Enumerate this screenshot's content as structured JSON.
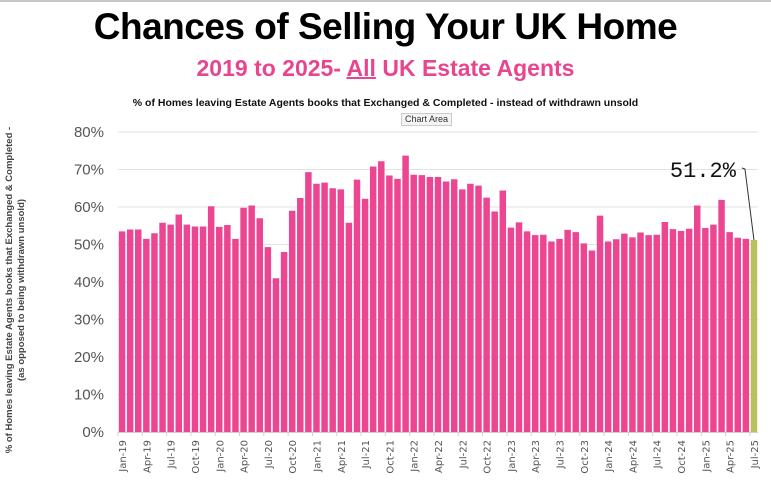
{
  "header": {
    "title": "Chances of Selling Your UK Home",
    "subtitle_pre": "2019 to 2025- ",
    "subtitle_emph": "All",
    "subtitle_post": " UK Estate Agents",
    "tooltip": "Chart Area"
  },
  "chart_data": {
    "type": "bar",
    "title": "% of Homes leaving Estate Agents books that Exchanged & Completed - instead of withdrawn unsold",
    "ylabel": "% of Homes leaving Estate Agents books that Exchanged & Completed - (as opposed to being withdrawn unsold)",
    "xlabel": "",
    "ylim": [
      0,
      80
    ],
    "yticks": [
      "0%",
      "10%",
      "20%",
      "30%",
      "40%",
      "50%",
      "60%",
      "70%",
      "80%"
    ],
    "grid": true,
    "colors": {
      "bar": "#ec4592",
      "highlight": "#b5c35a"
    },
    "categories": [
      "Jan-19",
      "Feb-19",
      "Mar-19",
      "Apr-19",
      "May-19",
      "Jun-19",
      "Jul-19",
      "Aug-19",
      "Sep-19",
      "Oct-19",
      "Nov-19",
      "Dec-19",
      "Jan-20",
      "Feb-20",
      "Mar-20",
      "Apr-20",
      "May-20",
      "Jun-20",
      "Jul-20",
      "Aug-20",
      "Sep-20",
      "Oct-20",
      "Nov-20",
      "Dec-20",
      "Jan-21",
      "Feb-21",
      "Mar-21",
      "Apr-21",
      "May-21",
      "Jun-21",
      "Jul-21",
      "Aug-21",
      "Sep-21",
      "Oct-21",
      "Nov-21",
      "Dec-21",
      "Jan-22",
      "Feb-22",
      "Mar-22",
      "Apr-22",
      "May-22",
      "Jun-22",
      "Jul-22",
      "Aug-22",
      "Sep-22",
      "Oct-22",
      "Nov-22",
      "Dec-22",
      "Jan-23",
      "Feb-23",
      "Mar-23",
      "Apr-23",
      "May-23",
      "Jun-23",
      "Jul-23",
      "Aug-23",
      "Sep-23",
      "Oct-23",
      "Nov-23",
      "Dec-23",
      "Jan-24",
      "Feb-24",
      "Mar-24",
      "Apr-24",
      "May-24",
      "Jun-24",
      "Jul-24",
      "Aug-24",
      "Sep-24",
      "Oct-24",
      "Nov-24",
      "Dec-24",
      "Jan-25",
      "Feb-25",
      "Mar-25",
      "Apr-25",
      "May-25",
      "Jun-25",
      "Jul-25"
    ],
    "xtick_labels": [
      "Jan-19",
      "Apr-19",
      "Jul-19",
      "Oct-19",
      "Jan-20",
      "Apr-20",
      "Jul-20",
      "Oct-20",
      "Jan-21",
      "Apr-21",
      "Jul-21",
      "Oct-21",
      "Jan-22",
      "Apr-22",
      "Jul-22",
      "Oct-22",
      "Jan-23",
      "Apr-23",
      "Jul-23",
      "Oct-23",
      "Jan-24",
      "Apr-24",
      "Jul-24",
      "Oct-24",
      "Jan-25",
      "Apr-25",
      "Jul-25"
    ],
    "values": [
      53.5,
      54,
      54,
      51.5,
      53,
      55.8,
      55.3,
      58,
      55.3,
      54.8,
      54.8,
      60.2,
      54.7,
      55.2,
      51.5,
      59.8,
      60.4,
      57,
      49.3,
      41,
      48,
      59,
      62.4,
      69.3,
      66.2,
      66.5,
      65,
      64.7,
      55.8,
      67.3,
      62.2,
      70.8,
      72.2,
      68.4,
      67.5,
      73.7,
      68.6,
      68.5,
      68,
      68,
      66.8,
      67.4,
      64.7,
      66.2,
      65.7,
      62.5,
      58.8,
      64.4,
      54.5,
      55.9,
      53.5,
      52.5,
      52.6,
      50.8,
      51.5,
      53.9,
      53.3,
      50.3,
      48.4,
      57.7,
      50.8,
      51.4,
      52.9,
      51.9,
      53.2,
      52.5,
      52.6,
      56,
      54.1,
      53.6,
      54.2,
      60.4,
      54.4,
      55.3,
      61.9,
      53.3,
      51.8,
      51.5,
      51.2
    ],
    "annotation": {
      "label": "51.2%",
      "category": "Jul-25"
    }
  }
}
